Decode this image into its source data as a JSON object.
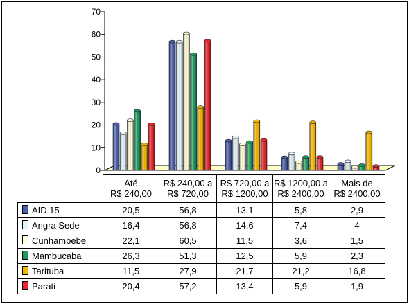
{
  "chart_data": {
    "type": "bar",
    "categories": [
      "Até R$ 240,00",
      "R$ 240,00 a R$ 720,00",
      "R$ 720,00 a R$ 1200,00",
      "R$ 1200,00 a R$ 2400,00",
      "Mais de R$ 2400,00"
    ],
    "category_lines": [
      [
        "Até",
        "R$ 240,00"
      ],
      [
        "R$ 240,00 a",
        "R$ 720,00"
      ],
      [
        "R$ 720,00 a",
        "R$ 1200,00"
      ],
      [
        "R$ 1200,00 a",
        "R$ 2400,00"
      ],
      [
        "Mais de",
        "R$ 2400,00"
      ]
    ],
    "series": [
      {
        "name": "AID 15",
        "color": "#4a5fb0",
        "values": [
          20.5,
          56.8,
          13.1,
          5.8,
          2.9
        ],
        "labels": [
          "20,5",
          "56,8",
          "13,1",
          "5,8",
          "2,9"
        ]
      },
      {
        "name": "Angra Sede",
        "color": "#e4f4fb",
        "values": [
          16.4,
          56.8,
          14.6,
          7.4,
          4
        ],
        "labels": [
          "16,4",
          "56,8",
          "14,6",
          "7,4",
          "4"
        ]
      },
      {
        "name": "Cunhambebe",
        "color": "#fdfbd6",
        "values": [
          22.1,
          60.5,
          11.5,
          3.6,
          1.5
        ],
        "labels": [
          "22,1",
          "60,5",
          "11,5",
          "3,6",
          "1,5"
        ]
      },
      {
        "name": "Mambucaba",
        "color": "#1c9a5e",
        "values": [
          26.3,
          51.3,
          12.5,
          5.9,
          2.3
        ],
        "labels": [
          "26,3",
          "51,3",
          "12,5",
          "5,9",
          "2,3"
        ]
      },
      {
        "name": "Tarituba",
        "color": "#f5b800",
        "values": [
          11.5,
          27.9,
          21.7,
          21.2,
          16.8
        ],
        "labels": [
          "11,5",
          "27,9",
          "21,7",
          "21,2",
          "16,8"
        ]
      },
      {
        "name": "Parati",
        "color": "#e8242c",
        "values": [
          20.4,
          57.2,
          13.4,
          5.9,
          1.9
        ],
        "labels": [
          "20,4",
          "57,2",
          "13,4",
          "5,9",
          "1,9"
        ]
      }
    ],
    "ylim": [
      0,
      70
    ],
    "yticks": [
      0,
      10,
      20,
      30,
      40,
      50,
      60,
      70
    ],
    "floor_color": "#ffffc6",
    "legend": "data-table",
    "grid": false
  }
}
